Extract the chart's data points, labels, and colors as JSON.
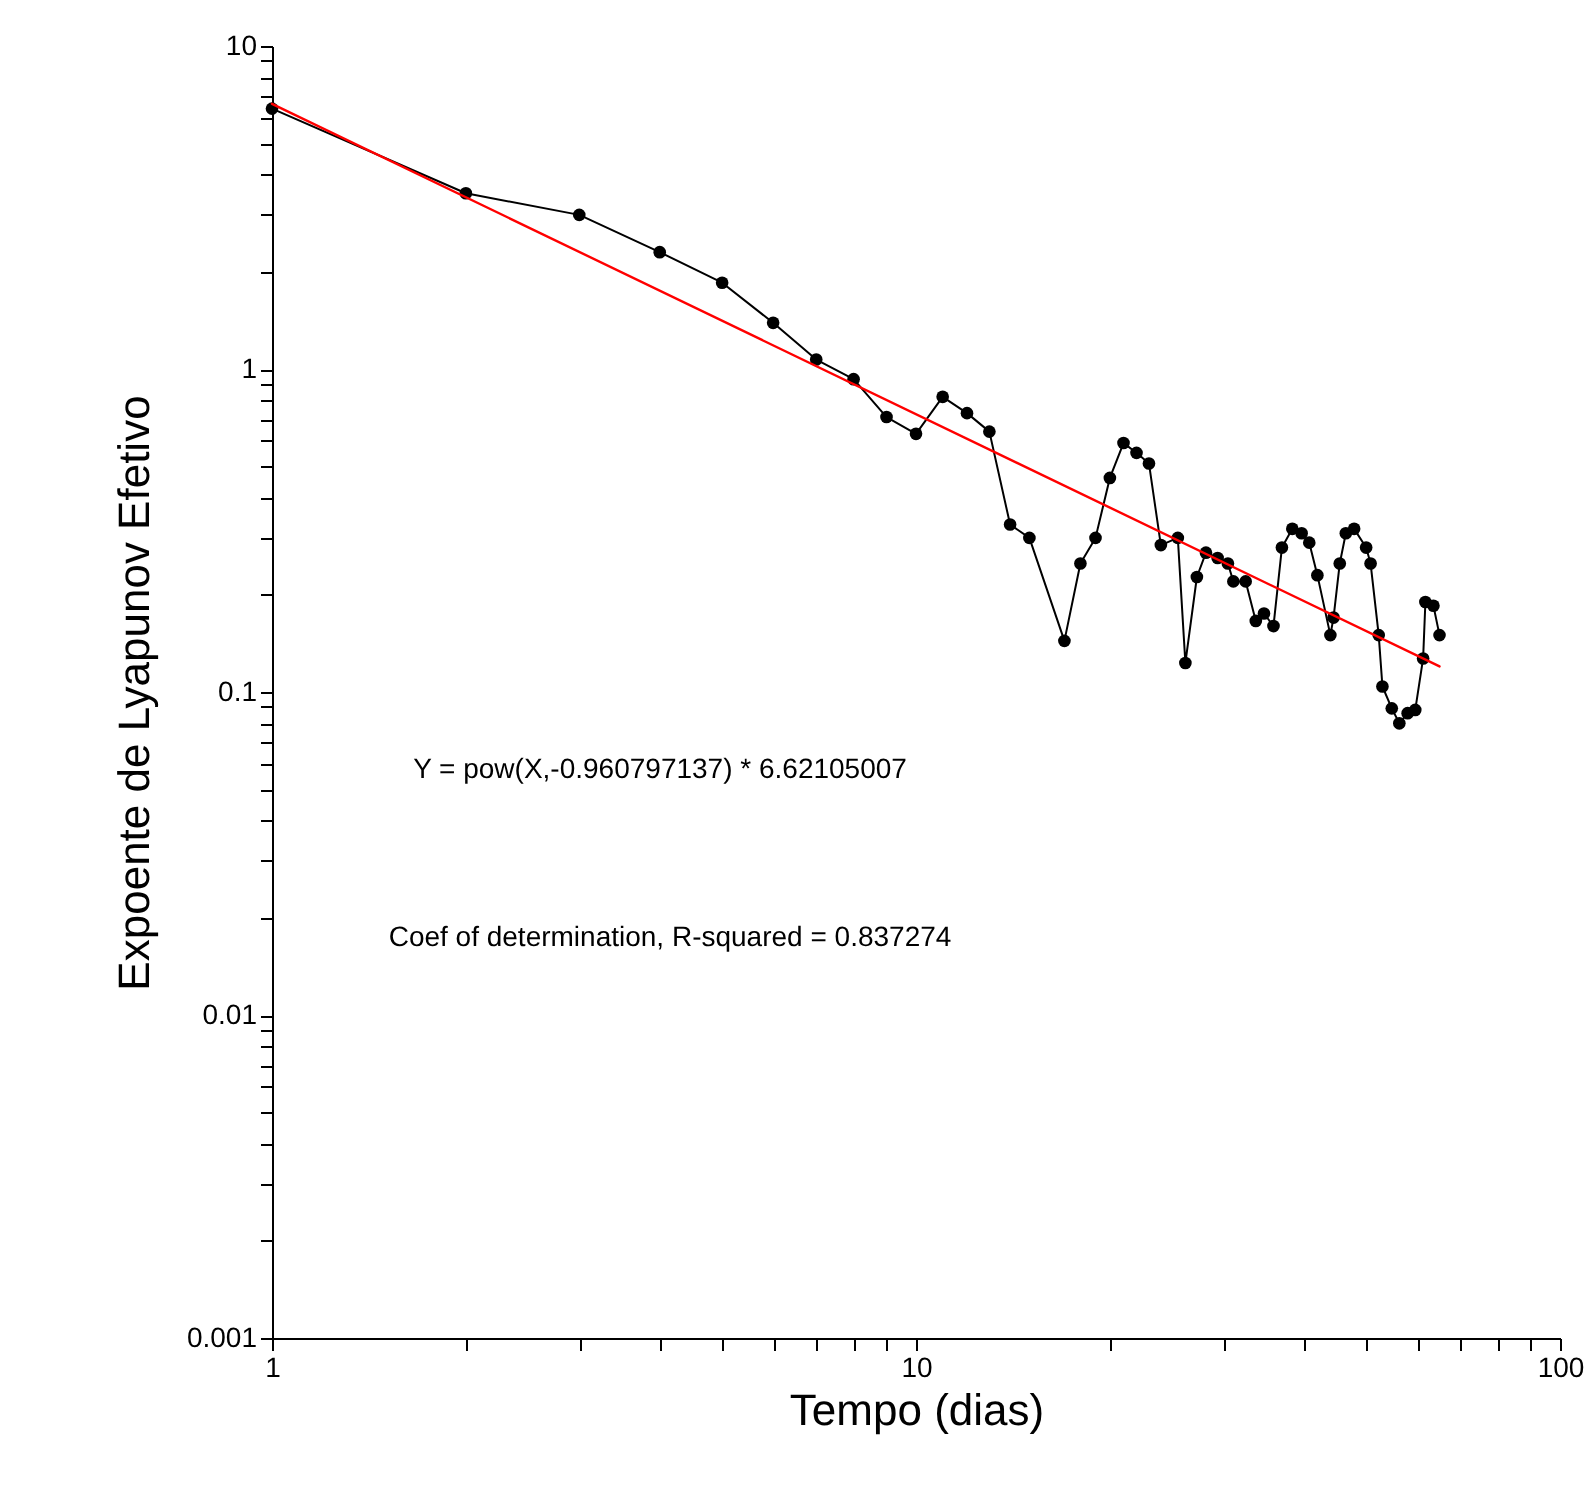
{
  "chart_data": {
    "type": "line",
    "xlabel": "Tempo (dias)",
    "ylabel": "Expoente de Lyapunov Efetivo",
    "log": "xy",
    "grid": false,
    "marker": "circle",
    "line_style": "solid",
    "xlim": [
      1,
      100
    ],
    "ylim": [
      0.001,
      10
    ],
    "xticks": [
      1,
      {
        "value": 2,
        "label": null
      },
      {
        "value": 3,
        "label": null
      },
      {
        "value": 4,
        "label": null
      },
      {
        "value": 5,
        "label": null
      },
      {
        "value": 6,
        "label": null
      },
      {
        "value": 7,
        "label": null
      },
      {
        "value": 8,
        "label": null
      },
      {
        "value": 9,
        "label": null
      },
      10,
      {
        "value": 20,
        "label": null
      },
      {
        "value": 30,
        "label": null
      },
      {
        "value": 40,
        "label": null
      },
      {
        "value": 50,
        "label": null
      },
      {
        "value": 60,
        "label": null
      },
      {
        "value": 70,
        "label": null
      },
      {
        "value": 80,
        "label": null
      },
      {
        "value": 90,
        "label": null
      },
      100
    ],
    "yticks": [
      0.001,
      {
        "value": 0.002,
        "label": null
      },
      {
        "value": 0.003,
        "label": null
      },
      {
        "value": 0.004,
        "label": null
      },
      {
        "value": 0.005,
        "label": null
      },
      {
        "value": 0.006,
        "label": null
      },
      {
        "value": 0.007,
        "label": null
      },
      {
        "value": 0.008,
        "label": null
      },
      {
        "value": 0.009,
        "label": null
      },
      0.01,
      {
        "value": 0.02,
        "label": null
      },
      {
        "value": 0.03,
        "label": null
      },
      {
        "value": 0.04,
        "label": null
      },
      {
        "value": 0.05,
        "label": null
      },
      {
        "value": 0.06,
        "label": null
      },
      {
        "value": 0.07,
        "label": null
      },
      {
        "value": 0.08,
        "label": null
      },
      {
        "value": 0.09,
        "label": null
      },
      0.1,
      {
        "value": 0.2,
        "label": null
      },
      {
        "value": 0.3,
        "label": null
      },
      {
        "value": 0.4,
        "label": null
      },
      {
        "value": 0.5,
        "label": null
      },
      {
        "value": 0.6,
        "label": null
      },
      {
        "value": 0.7,
        "label": null
      },
      {
        "value": 0.8,
        "label": null
      },
      {
        "value": 0.9,
        "label": null
      },
      1,
      {
        "value": 2,
        "label": null
      },
      {
        "value": 3,
        "label": null
      },
      {
        "value": 4,
        "label": null
      },
      {
        "value": 5,
        "label": null
      },
      {
        "value": 6,
        "label": null
      },
      {
        "value": 7,
        "label": null
      },
      {
        "value": 8,
        "label": null
      },
      {
        "value": 9,
        "label": null
      },
      10
    ],
    "series": [
      {
        "color": "#000000",
        "x": [
          1,
          2,
          3,
          4,
          5,
          6,
          7,
          8,
          9,
          10,
          11,
          12,
          13,
          14,
          15,
          17,
          18,
          19,
          20,
          21,
          22,
          23,
          24,
          25.5,
          26.2,
          27.3,
          28.2,
          29.4,
          30.5,
          31.1,
          32.5,
          33.7,
          34.7,
          35.9,
          37,
          38.4,
          39.7,
          40.8,
          42,
          44,
          44.5,
          45.5,
          46.5,
          47.9,
          50,
          50.8,
          52.3,
          53,
          54.8,
          56.3,
          58,
          59.6,
          61.3,
          61.8,
          63.6,
          65
        ],
        "values": [
          6.4,
          3.5,
          3.0,
          2.3,
          1.85,
          1.39,
          1.07,
          0.93,
          0.71,
          0.63,
          0.82,
          0.73,
          0.64,
          0.33,
          0.3,
          0.144,
          0.25,
          0.3,
          0.46,
          0.59,
          0.55,
          0.51,
          0.285,
          0.3,
          0.123,
          0.227,
          0.27,
          0.26,
          0.25,
          0.22,
          0.22,
          0.166,
          0.175,
          0.16,
          0.28,
          0.32,
          0.31,
          0.29,
          0.23,
          0.15,
          0.17,
          0.25,
          0.31,
          0.32,
          0.28,
          0.25,
          0.15,
          0.104,
          0.089,
          0.08,
          0.086,
          0.088,
          0.127,
          0.19,
          0.185,
          0.15
        ]
      },
      {
        "type": "line",
        "marker": "none",
        "color": "#ff0000",
        "x": [
          1,
          65
        ],
        "values": [
          6.62,
          0.12
        ]
      }
    ],
    "annotations": [
      "Y = pow(X,-0.960797137) * 6.62105007",
      "Coef of determination, R-squared = 0.837274"
    ]
  }
}
